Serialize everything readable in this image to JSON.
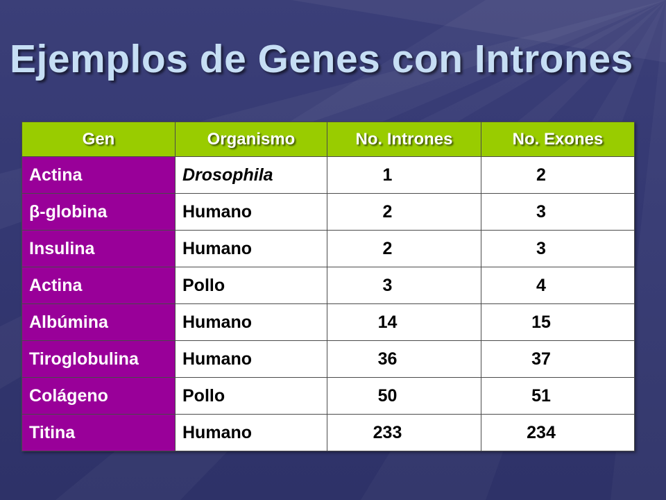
{
  "slide": {
    "title": "Ejemplos de Genes con Intrones",
    "colors": {
      "background": "#343872",
      "title": "#c6def4",
      "header_fill": "#99cc00",
      "gene_column_fill": "#990099",
      "body_fill": "#ffffff"
    }
  },
  "table": {
    "headers": [
      "Gen",
      "Organismo",
      "No. Intrones",
      "No. Exones"
    ],
    "rows": [
      {
        "gen": "Actina",
        "organismo": "Drosophila",
        "organismo_italic": true,
        "intrones": "1",
        "exones": "2"
      },
      {
        "gen": "β-globina",
        "organismo": "Humano",
        "organismo_italic": false,
        "intrones": "2",
        "exones": "3"
      },
      {
        "gen": "Insulina",
        "organismo": "Humano",
        "organismo_italic": false,
        "intrones": "2",
        "exones": "3"
      },
      {
        "gen": "Actina",
        "organismo": "Pollo",
        "organismo_italic": false,
        "intrones": "3",
        "exones": "4"
      },
      {
        "gen": "Albúmina",
        "organismo": "Humano",
        "organismo_italic": false,
        "intrones": "14",
        "exones": "15"
      },
      {
        "gen": "Tiroglobulina",
        "organismo": "Humano",
        "organismo_italic": false,
        "intrones": "36",
        "exones": "37"
      },
      {
        "gen": "Colágeno",
        "organismo": "Pollo",
        "organismo_italic": false,
        "intrones": "50",
        "exones": "51"
      },
      {
        "gen": "Titina",
        "organismo": "Humano",
        "organismo_italic": false,
        "intrones": "233",
        "exones": "234"
      }
    ]
  }
}
